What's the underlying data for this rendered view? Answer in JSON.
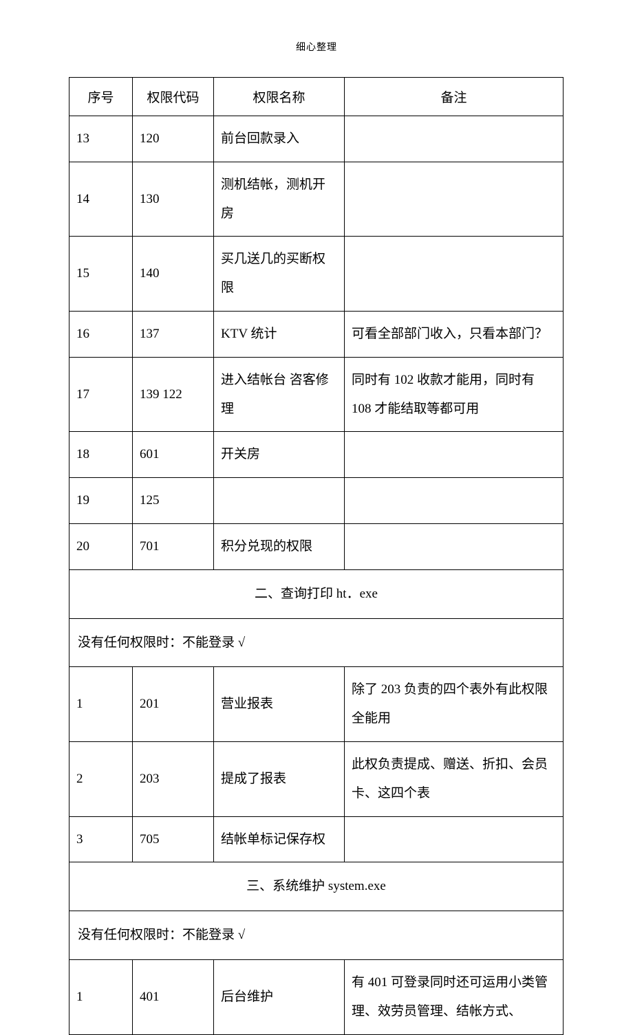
{
  "header": {
    "label": "细心整理"
  },
  "table": {
    "columns": [
      "序号",
      "权限代码",
      "权限名称",
      "备注"
    ],
    "rows": [
      {
        "type": "data",
        "cells": [
          "13",
          "120",
          "前台回款录入",
          ""
        ]
      },
      {
        "type": "data",
        "cells": [
          "14",
          "130",
          "测机结帐，测机开房",
          ""
        ]
      },
      {
        "type": "data",
        "cells": [
          "15",
          "140",
          "买几送几的买断权限",
          ""
        ]
      },
      {
        "type": "data",
        "cells": [
          "16",
          "137",
          "KTV 统计",
          "可看全部部门收入，只看本部门？"
        ]
      },
      {
        "type": "data",
        "cells": [
          "17",
          "139  122",
          "进入结帐台  咨客修理",
          "同时有 102 收款才能用，同时有 108 才能结取等都可用"
        ]
      },
      {
        "type": "data",
        "cells": [
          "18",
          "601",
          "开关房",
          ""
        ]
      },
      {
        "type": "data",
        "cells": [
          "19",
          "125",
          "",
          ""
        ]
      },
      {
        "type": "data",
        "cells": [
          "20",
          "701",
          "积分兑现的权限",
          ""
        ]
      },
      {
        "type": "section",
        "text": "二、查询打印 ht．exe"
      },
      {
        "type": "note",
        "text": "没有任何权限时：不能登录 √"
      },
      {
        "type": "data",
        "cells": [
          "1",
          "201",
          "营业报表",
          "除了 203 负责的四个表外有此权限全能用"
        ]
      },
      {
        "type": "data",
        "cells": [
          "2",
          "203",
          "提成了报表",
          "此权负责提成、赠送、折扣、会员卡、这四个表"
        ]
      },
      {
        "type": "data",
        "cells": [
          "3",
          "705",
          "结帐单标记保存权",
          ""
        ]
      },
      {
        "type": "section",
        "text": "三、系统维护 system.exe"
      },
      {
        "type": "note",
        "text": "没有任何权限时：不能登录 √"
      },
      {
        "type": "data",
        "cells": [
          "1",
          "401",
          "后台维护",
          "有 401 可登录同时还可运用小类管理、效劳员管理、结帐方式、"
        ]
      }
    ]
  }
}
